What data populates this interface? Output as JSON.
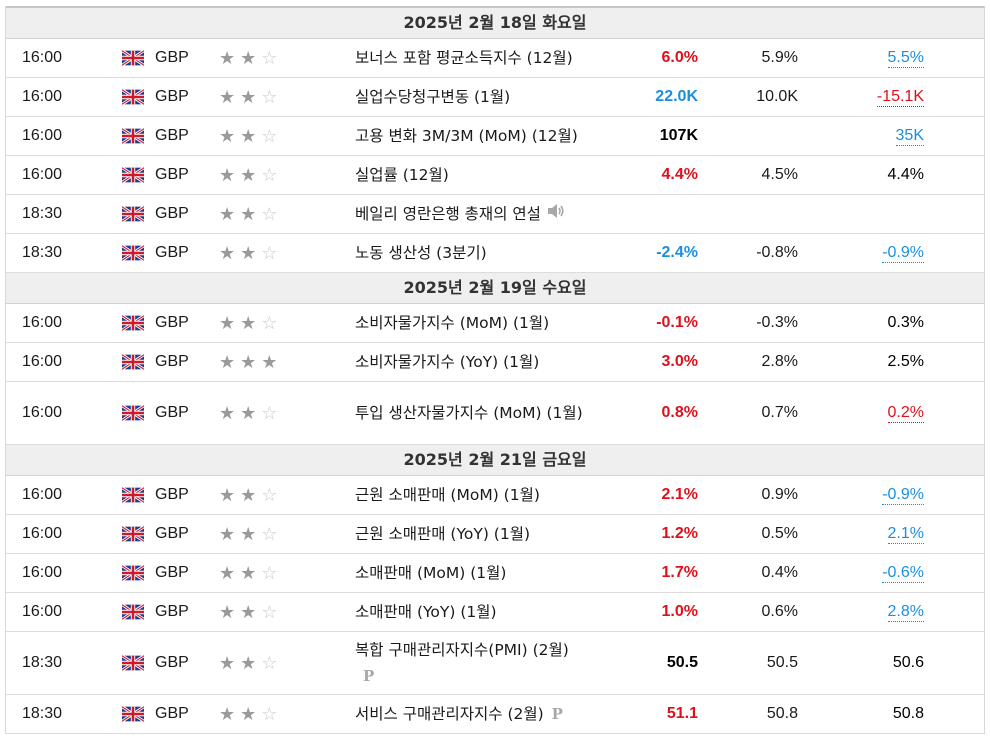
{
  "days": [
    {
      "date_label": "2025년 2월 18일 화요일",
      "events": [
        {
          "time": "16:00",
          "currency": "GBP",
          "importance": 2,
          "name": "보너스 포함 평균소득지수 (12월)",
          "actual": "6.0%",
          "actual_dir": "up",
          "forecast": "5.9%",
          "previous": "5.5%",
          "previous_style": "rev-down"
        },
        {
          "time": "16:00",
          "currency": "GBP",
          "importance": 2,
          "name": "실업수당청구변동 (1월)",
          "actual": "22.0K",
          "actual_dir": "down",
          "forecast": "10.0K",
          "previous": "-15.1K",
          "previous_style": "rev-up"
        },
        {
          "time": "16:00",
          "currency": "GBP",
          "importance": 2,
          "name": "고용 변화 3M/3M (MoM) (12월)",
          "actual": "107K",
          "actual_dir": "neutral",
          "forecast": "",
          "previous": "35K",
          "previous_style": "rev-down"
        },
        {
          "time": "16:00",
          "currency": "GBP",
          "importance": 2,
          "name": "실업률 (12월)",
          "actual": "4.4%",
          "actual_dir": "up",
          "forecast": "4.5%",
          "previous": "4.4%",
          "previous_style": "neutral"
        },
        {
          "time": "18:30",
          "currency": "GBP",
          "importance": 2,
          "name": "베일리 영란은행 총재의 연설",
          "actual": "",
          "actual_dir": "neutral",
          "forecast": "",
          "previous": "",
          "previous_style": "neutral",
          "icon": "speaker-icon"
        },
        {
          "time": "18:30",
          "currency": "GBP",
          "importance": 2,
          "name": "노동 생산성 (3분기)",
          "actual": "-2.4%",
          "actual_dir": "down",
          "forecast": "-0.8%",
          "previous": "-0.9%",
          "previous_style": "rev-down"
        }
      ]
    },
    {
      "date_label": "2025년 2월 19일 수요일",
      "events": [
        {
          "time": "16:00",
          "currency": "GBP",
          "importance": 2,
          "name": "소비자물가지수 (MoM) (1월)",
          "actual": "-0.1%",
          "actual_dir": "up",
          "forecast": "-0.3%",
          "previous": "0.3%",
          "previous_style": "neutral"
        },
        {
          "time": "16:00",
          "currency": "GBP",
          "importance": 3,
          "name": "소비자물가지수 (YoY) (1월)",
          "actual": "3.0%",
          "actual_dir": "up",
          "forecast": "2.8%",
          "previous": "2.5%",
          "previous_style": "neutral"
        },
        {
          "time": "16:00",
          "currency": "GBP",
          "importance": 2,
          "name": "투입 생산자물가지수 (MoM) (1월)",
          "actual": "0.8%",
          "actual_dir": "up",
          "forecast": "0.7%",
          "previous": "0.2%",
          "previous_style": "rev-up",
          "tall": true
        }
      ]
    },
    {
      "date_label": "2025년 2월 21일 금요일",
      "events": [
        {
          "time": "16:00",
          "currency": "GBP",
          "importance": 2,
          "name": "근원 소매판매 (MoM) (1월)",
          "actual": "2.1%",
          "actual_dir": "up",
          "forecast": "0.9%",
          "previous": "-0.9%",
          "previous_style": "rev-down"
        },
        {
          "time": "16:00",
          "currency": "GBP",
          "importance": 2,
          "name": "근원 소매판매 (YoY) (1월)",
          "actual": "1.2%",
          "actual_dir": "up",
          "forecast": "0.5%",
          "previous": "2.1%",
          "previous_style": "rev-down"
        },
        {
          "time": "16:00",
          "currency": "GBP",
          "importance": 2,
          "name": "소매판매 (MoM) (1월)",
          "actual": "1.7%",
          "actual_dir": "up",
          "forecast": "0.4%",
          "previous": "-0.6%",
          "previous_style": "rev-down"
        },
        {
          "time": "16:00",
          "currency": "GBP",
          "importance": 2,
          "name": "소매판매 (YoY) (1월)",
          "actual": "1.0%",
          "actual_dir": "up",
          "forecast": "0.6%",
          "previous": "2.8%",
          "previous_style": "rev-down"
        },
        {
          "time": "18:30",
          "currency": "GBP",
          "importance": 2,
          "name": "복합 구매관리자지수(PMI) (2월)",
          "actual": "50.5",
          "actual_dir": "neutral",
          "forecast": "50.5",
          "previous": "50.6",
          "previous_style": "neutral",
          "icon": "preliminary-icon",
          "icon_text": "P",
          "tall": true
        },
        {
          "time": "18:30",
          "currency": "GBP",
          "importance": 2,
          "name": "서비스 구매관리자지수 (2월)",
          "actual": "51.1",
          "actual_dir": "up",
          "forecast": "50.8",
          "previous": "50.8",
          "previous_style": "neutral",
          "icon": "preliminary-icon",
          "icon_text": "P"
        }
      ]
    }
  ],
  "colors": {
    "up": "#e0101a",
    "down": "#1a8fe0",
    "header_bg": "#efefef"
  }
}
